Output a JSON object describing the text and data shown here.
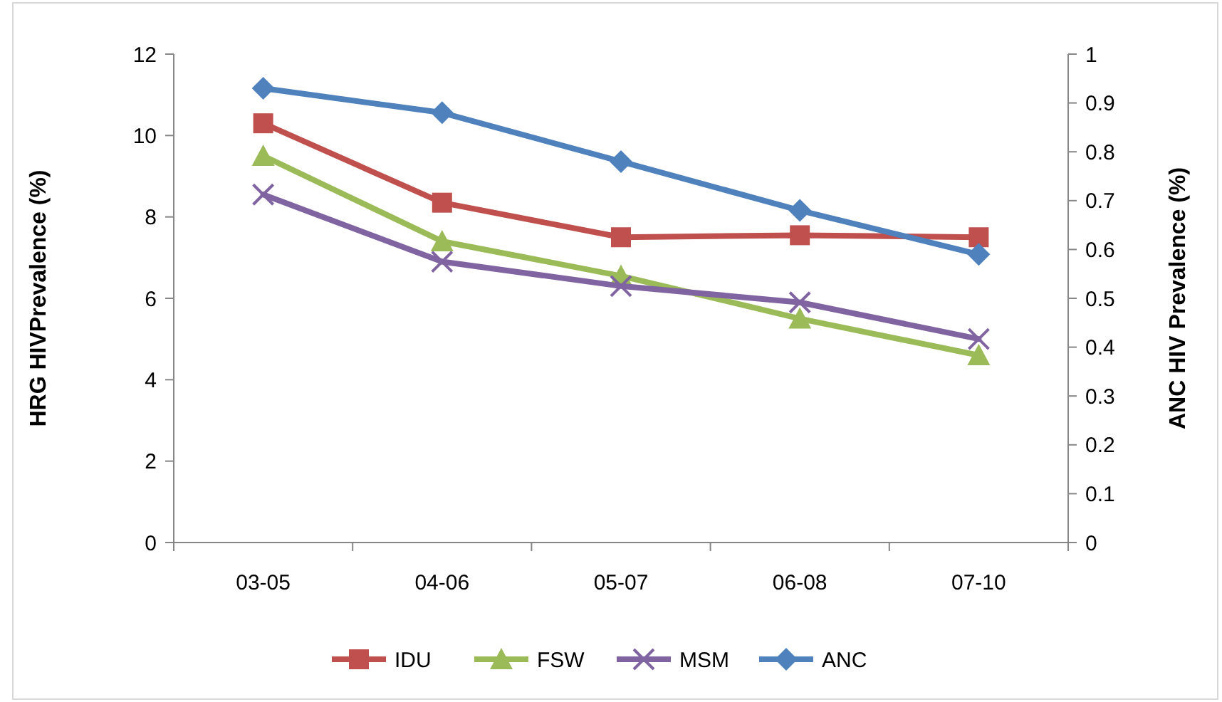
{
  "chart_data": {
    "type": "line",
    "categories": [
      "03-05",
      "04-06",
      "05-07",
      "06-08",
      "07-10"
    ],
    "ylabel": "HRG HIVPrevalence (%)",
    "y2label": "ANC HIV Prevalence (%)",
    "ylim": [
      0,
      12
    ],
    "yticks": [
      0,
      2,
      4,
      6,
      8,
      10,
      12
    ],
    "y2lim": [
      0,
      1
    ],
    "y2ticks": [
      0,
      {
        "value": 0.1,
        "label": "0.1"
      },
      {
        "value": 0.2,
        "label": "0.2"
      },
      {
        "value": 0.3,
        "label": "0.3"
      },
      {
        "value": 0.4,
        "label": "0.4"
      },
      {
        "value": 0.5,
        "label": "0.5"
      },
      {
        "value": 0.6,
        "label": "0.6"
      },
      {
        "value": 0.7,
        "label": "0.7"
      },
      {
        "value": 0.8,
        "label": "0.8"
      },
      {
        "value": 0.9,
        "label": "0.9"
      },
      1
    ],
    "grid": false,
    "legend": "bottom",
    "series": [
      {
        "name": "IDU",
        "color": "#c0504d",
        "marker": "square",
        "values": [
          10.3,
          8.35,
          7.5,
          7.55,
          7.5
        ]
      },
      {
        "name": "FSW",
        "color": "#9bbb59",
        "marker": "triangle",
        "values": [
          9.5,
          7.4,
          6.55,
          5.5,
          4.6
        ]
      },
      {
        "name": "MSM",
        "color": "#8064a2",
        "marker": "cross",
        "values": [
          8.55,
          6.9,
          6.3,
          5.9,
          5.0
        ]
      },
      {
        "name": "ANC",
        "color": "#4f81bd",
        "marker": "diamond",
        "axis": "y2",
        "values": [
          0.93,
          0.88,
          0.78,
          0.68,
          0.59
        ]
      }
    ]
  }
}
